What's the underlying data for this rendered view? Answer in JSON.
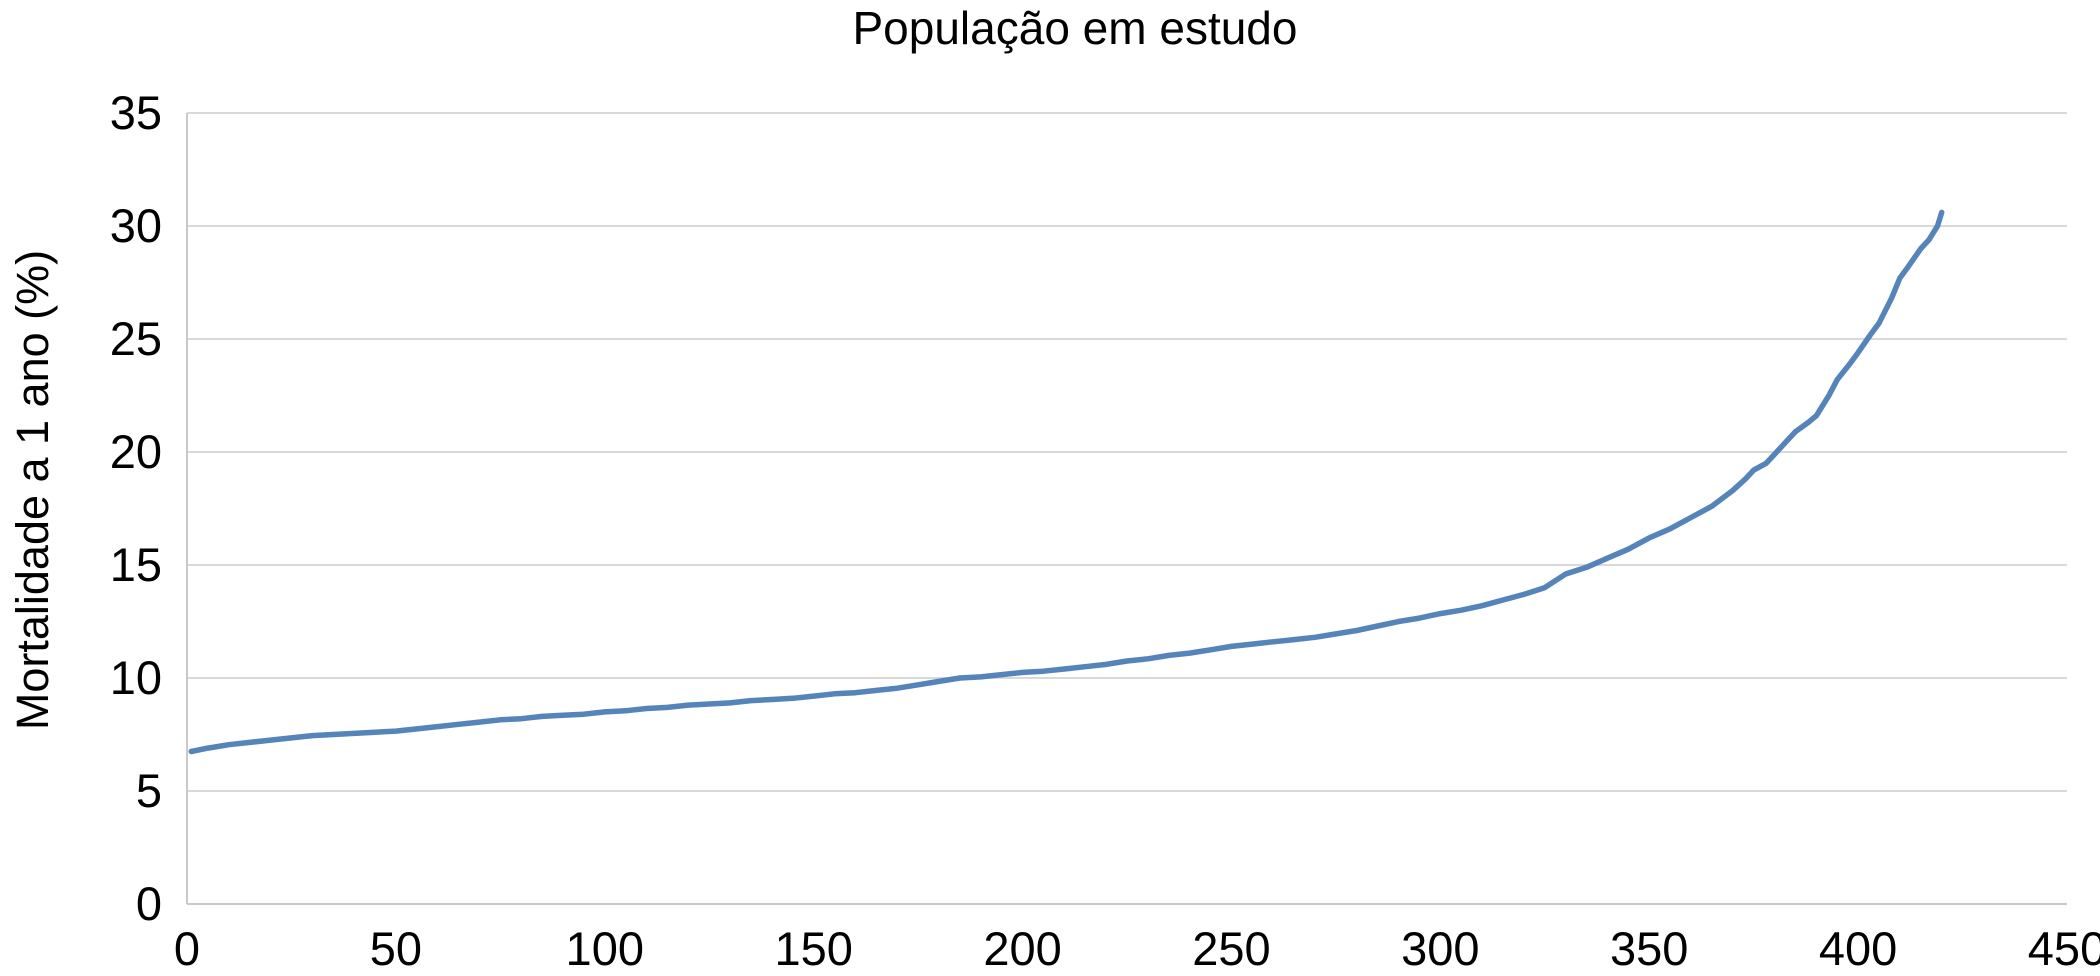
{
  "chart_data": {
    "type": "line",
    "title": "População em estudo",
    "xlabel": "",
    "ylabel": "Mortalidade a 1 ano (%)",
    "xlim": [
      0,
      450
    ],
    "ylim": [
      0,
      35
    ],
    "x_ticks": [
      0,
      50,
      100,
      150,
      200,
      250,
      300,
      350,
      400,
      450
    ],
    "y_ticks": [
      0,
      5,
      10,
      15,
      20,
      25,
      30,
      35
    ],
    "grid": "horizontal",
    "legend": "none",
    "series": [
      {
        "name": "Mortalidade a 1 ano (%)",
        "color": "#5584BB",
        "points": [
          [
            1,
            6.75
          ],
          [
            5,
            6.9
          ],
          [
            10,
            7.05
          ],
          [
            15,
            7.15
          ],
          [
            20,
            7.25
          ],
          [
            25,
            7.35
          ],
          [
            30,
            7.45
          ],
          [
            35,
            7.5
          ],
          [
            40,
            7.55
          ],
          [
            45,
            7.6
          ],
          [
            50,
            7.65
          ],
          [
            55,
            7.75
          ],
          [
            60,
            7.85
          ],
          [
            65,
            7.95
          ],
          [
            70,
            8.05
          ],
          [
            75,
            8.15
          ],
          [
            80,
            8.2
          ],
          [
            85,
            8.3
          ],
          [
            90,
            8.35
          ],
          [
            95,
            8.4
          ],
          [
            100,
            8.5
          ],
          [
            105,
            8.55
          ],
          [
            110,
            8.65
          ],
          [
            115,
            8.7
          ],
          [
            120,
            8.8
          ],
          [
            125,
            8.85
          ],
          [
            130,
            8.9
          ],
          [
            135,
            9.0
          ],
          [
            140,
            9.05
          ],
          [
            145,
            9.1
          ],
          [
            150,
            9.2
          ],
          [
            155,
            9.3
          ],
          [
            160,
            9.35
          ],
          [
            165,
            9.45
          ],
          [
            170,
            9.55
          ],
          [
            175,
            9.7
          ],
          [
            180,
            9.85
          ],
          [
            185,
            10.0
          ],
          [
            190,
            10.05
          ],
          [
            195,
            10.15
          ],
          [
            200,
            10.25
          ],
          [
            205,
            10.3
          ],
          [
            210,
            10.4
          ],
          [
            215,
            10.5
          ],
          [
            220,
            10.6
          ],
          [
            225,
            10.75
          ],
          [
            230,
            10.85
          ],
          [
            235,
            11.0
          ],
          [
            240,
            11.1
          ],
          [
            245,
            11.25
          ],
          [
            250,
            11.4
          ],
          [
            255,
            11.5
          ],
          [
            260,
            11.6
          ],
          [
            265,
            11.7
          ],
          [
            270,
            11.8
          ],
          [
            275,
            11.95
          ],
          [
            280,
            12.1
          ],
          [
            285,
            12.3
          ],
          [
            290,
            12.5
          ],
          [
            295,
            12.65
          ],
          [
            300,
            12.85
          ],
          [
            305,
            13.0
          ],
          [
            310,
            13.2
          ],
          [
            315,
            13.45
          ],
          [
            320,
            13.7
          ],
          [
            325,
            14.0
          ],
          [
            330,
            14.6
          ],
          [
            335,
            14.9
          ],
          [
            340,
            15.3
          ],
          [
            345,
            15.7
          ],
          [
            350,
            16.2
          ],
          [
            355,
            16.6
          ],
          [
            360,
            17.1
          ],
          [
            365,
            17.6
          ],
          [
            370,
            18.3
          ],
          [
            373,
            18.8
          ],
          [
            375,
            19.2
          ],
          [
            378,
            19.5
          ],
          [
            380,
            19.9
          ],
          [
            382,
            20.3
          ],
          [
            385,
            20.9
          ],
          [
            388,
            21.3
          ],
          [
            390,
            21.6
          ],
          [
            393,
            22.5
          ],
          [
            395,
            23.2
          ],
          [
            398,
            23.9
          ],
          [
            400,
            24.4
          ],
          [
            403,
            25.2
          ],
          [
            405,
            25.7
          ],
          [
            408,
            26.8
          ],
          [
            410,
            27.7
          ],
          [
            412,
            28.2
          ],
          [
            415,
            29.0
          ],
          [
            417,
            29.4
          ],
          [
            419,
            30.0
          ],
          [
            420,
            30.6
          ]
        ]
      }
    ]
  },
  "colors": {
    "line": "#5584BB",
    "gridline": "#D9D9D9",
    "axis": "#C9C9C9",
    "text": "#000000",
    "background": "#FFFFFF"
  }
}
